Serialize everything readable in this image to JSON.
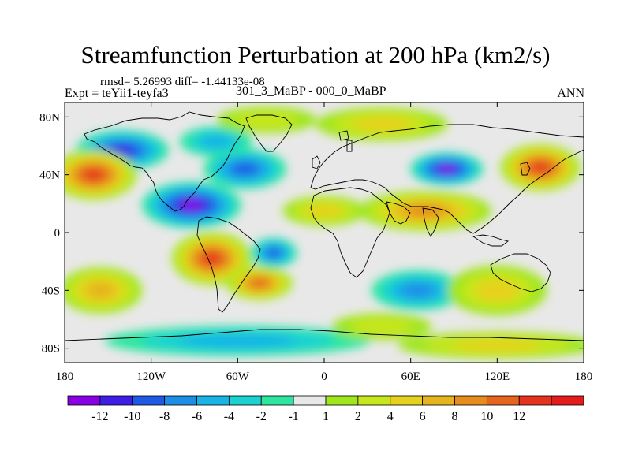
{
  "title": "Streamfunction Perturbation at 200 hPa (km2/s)",
  "stats_line": "rmsd= 5.26993 diff= -1.44133e-08",
  "experiment": "Expt = teYii1-teyfa3",
  "subtitle": "301_3_MaBP - 000_0_MaBP",
  "season": "ANN",
  "map": {
    "lon_ticks": [
      {
        "lon": -180,
        "label": "180"
      },
      {
        "lon": -120,
        "label": "120W"
      },
      {
        "lon": -60,
        "label": "60W"
      },
      {
        "lon": 0,
        "label": "0"
      },
      {
        "lon": 60,
        "label": "60E"
      },
      {
        "lon": 120,
        "label": "120E"
      },
      {
        "lon": 180,
        "label": "180"
      }
    ],
    "lat_ticks": [
      {
        "lat": 80,
        "label": "80N"
      },
      {
        "lat": 40,
        "label": "40N"
      },
      {
        "lat": 0,
        "label": "0"
      },
      {
        "lat": -40,
        "label": "40S"
      },
      {
        "lat": -80,
        "label": "80S"
      }
    ],
    "anomaly_centers": [
      {
        "lon": -140,
        "lat": 57,
        "value": -9,
        "rx": 28,
        "ry": 12
      },
      {
        "lon": -92,
        "lat": 19,
        "value": -13,
        "rx": 30,
        "ry": 14
      },
      {
        "lon": -55,
        "lat": 44,
        "value": -7,
        "rx": 25,
        "ry": 12
      },
      {
        "lon": 85,
        "lat": 44,
        "value": -11,
        "rx": 22,
        "ry": 10
      },
      {
        "lon": -35,
        "lat": -14,
        "value": -8,
        "rx": 14,
        "ry": 9
      },
      {
        "lon": 65,
        "lat": -40,
        "value": -5,
        "rx": 28,
        "ry": 12
      },
      {
        "lon": -75,
        "lat": 63,
        "value": -3,
        "rx": 22,
        "ry": 9
      },
      {
        "lon": -60,
        "lat": -75,
        "value": -4,
        "rx": 80,
        "ry": 9
      },
      {
        "lon": -160,
        "lat": 40,
        "value": 11,
        "rx": 26,
        "ry": 15
      },
      {
        "lon": 150,
        "lat": 45,
        "value": 12,
        "rx": 24,
        "ry": 14
      },
      {
        "lon": -78,
        "lat": -18,
        "value": 12,
        "rx": 24,
        "ry": 16
      },
      {
        "lon": -45,
        "lat": -35,
        "value": 9,
        "rx": 20,
        "ry": 10
      },
      {
        "lon": 70,
        "lat": 15,
        "value": 7,
        "rx": 40,
        "ry": 12
      },
      {
        "lon": 0,
        "lat": 15,
        "value": 4,
        "rx": 25,
        "ry": 9
      },
      {
        "lon": 120,
        "lat": -40,
        "value": 3,
        "rx": 30,
        "ry": 15
      },
      {
        "lon": -155,
        "lat": -40,
        "value": 5,
        "rx": 25,
        "ry": 14
      },
      {
        "lon": 40,
        "lat": 75,
        "value": 3,
        "rx": 40,
        "ry": 10
      },
      {
        "lon": -40,
        "lat": 78,
        "value": 2,
        "rx": 30,
        "ry": 8
      },
      {
        "lon": 120,
        "lat": -78,
        "value": 3,
        "rx": 60,
        "ry": 8
      },
      {
        "lon": 40,
        "lat": -65,
        "value": 2,
        "rx": 30,
        "ry": 8
      }
    ]
  },
  "colorbar": {
    "colors": [
      "#8a00e6",
      "#3c1ee6",
      "#1e5ae6",
      "#1c8ee6",
      "#18b4e6",
      "#1ad2d2",
      "#2ce6a0",
      "#e8e8e8",
      "#a0e61c",
      "#c8e61c",
      "#e6d21c",
      "#e6b41c",
      "#e68c1c",
      "#e6641c",
      "#e6321c",
      "#e61c1c"
    ],
    "labels": [
      "-12",
      "-10",
      "-8",
      "-6",
      "-4",
      "-2",
      "-1",
      "1",
      "2",
      "4",
      "6",
      "8",
      "10",
      "12"
    ],
    "levels": [
      -12,
      -10,
      -8,
      -6,
      -4,
      -2,
      -1,
      1,
      2,
      4,
      6,
      8,
      10,
      12
    ]
  }
}
